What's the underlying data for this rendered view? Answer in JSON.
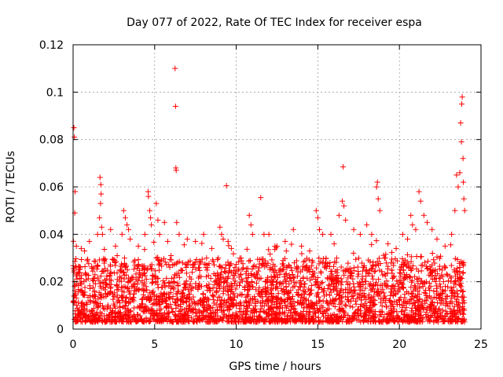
{
  "chart_data": {
    "type": "scatter",
    "title": "Day 077 of 2022, Rate Of TEC Index for receiver espa",
    "xlabel": "GPS time / hours",
    "ylabel": "ROTI / TECUs",
    "xlim": [
      0,
      25
    ],
    "ylim": [
      0,
      0.12
    ],
    "xticks": [
      0,
      5,
      10,
      15,
      20,
      25
    ],
    "xtick_labels": [
      "0",
      "5",
      "10",
      "15",
      "20",
      "25"
    ],
    "yticks": [
      0,
      0.02,
      0.04,
      0.06,
      0.08,
      0.1,
      0.12
    ],
    "ytick_labels": [
      "0",
      "0.02",
      "0.04",
      "0.06",
      "0.08",
      "0.1",
      "0.12"
    ],
    "grid": true,
    "marker": "plus",
    "color": "#ff0000",
    "series": [
      {
        "name": "ROTI",
        "points": [
          [
            0.05,
            0.085
          ],
          [
            0.08,
            0.081
          ],
          [
            0.1,
            0.049
          ],
          [
            0.12,
            0.058
          ],
          [
            0.2,
            0.035
          ],
          [
            0.5,
            0.034
          ],
          [
            0.7,
            0.033
          ],
          [
            1.0,
            0.037
          ],
          [
            1.5,
            0.04
          ],
          [
            1.65,
            0.064
          ],
          [
            1.7,
            0.061
          ],
          [
            1.72,
            0.057
          ],
          [
            1.68,
            0.053
          ],
          [
            1.62,
            0.047
          ],
          [
            1.75,
            0.043
          ],
          [
            1.8,
            0.04
          ],
          [
            2.3,
            0.042
          ],
          [
            2.6,
            0.035
          ],
          [
            3.0,
            0.04
          ],
          [
            3.1,
            0.05
          ],
          [
            3.2,
            0.047
          ],
          [
            3.3,
            0.044
          ],
          [
            3.4,
            0.042
          ],
          [
            3.5,
            0.038
          ],
          [
            4.0,
            0.035
          ],
          [
            4.4,
            0.04
          ],
          [
            4.6,
            0.058
          ],
          [
            4.62,
            0.056
          ],
          [
            4.7,
            0.05
          ],
          [
            4.75,
            0.047
          ],
          [
            4.8,
            0.044
          ],
          [
            5.1,
            0.053
          ],
          [
            5.2,
            0.046
          ],
          [
            5.3,
            0.04
          ],
          [
            5.6,
            0.045
          ],
          [
            5.8,
            0.037
          ],
          [
            6.0,
            0.031
          ],
          [
            6.25,
            0.11
          ],
          [
            6.28,
            0.094
          ],
          [
            6.3,
            0.068
          ],
          [
            6.32,
            0.067
          ],
          [
            6.35,
            0.045
          ],
          [
            6.5,
            0.04
          ],
          [
            7.0,
            0.038
          ],
          [
            7.5,
            0.037
          ],
          [
            8.0,
            0.04
          ],
          [
            8.5,
            0.034
          ],
          [
            9.0,
            0.043
          ],
          [
            9.1,
            0.04
          ],
          [
            9.2,
            0.038
          ],
          [
            9.4,
            0.0605
          ],
          [
            9.5,
            0.037
          ],
          [
            9.7,
            0.034
          ],
          [
            10.3,
            0.03
          ],
          [
            10.8,
            0.048
          ],
          [
            10.9,
            0.044
          ],
          [
            11.0,
            0.04
          ],
          [
            11.5,
            0.0555
          ],
          [
            11.7,
            0.04
          ],
          [
            12.0,
            0.04
          ],
          [
            12.5,
            0.035
          ],
          [
            13.0,
            0.037
          ],
          [
            13.5,
            0.042
          ],
          [
            14.0,
            0.035
          ],
          [
            14.5,
            0.033
          ],
          [
            14.9,
            0.05
          ],
          [
            15.0,
            0.047
          ],
          [
            15.1,
            0.042
          ],
          [
            15.3,
            0.04
          ],
          [
            15.8,
            0.04
          ],
          [
            16.0,
            0.036
          ],
          [
            16.3,
            0.048
          ],
          [
            16.5,
            0.054
          ],
          [
            16.55,
            0.0685
          ],
          [
            16.6,
            0.052
          ],
          [
            16.7,
            0.046
          ],
          [
            17.2,
            0.042
          ],
          [
            17.6,
            0.04
          ],
          [
            18.0,
            0.044
          ],
          [
            18.3,
            0.04
          ],
          [
            18.6,
            0.06
          ],
          [
            18.65,
            0.062
          ],
          [
            18.7,
            0.055
          ],
          [
            18.8,
            0.05
          ],
          [
            19.3,
            0.036
          ],
          [
            19.8,
            0.034
          ],
          [
            20.2,
            0.04
          ],
          [
            20.5,
            0.038
          ],
          [
            20.7,
            0.048
          ],
          [
            20.8,
            0.044
          ],
          [
            21.0,
            0.042
          ],
          [
            21.2,
            0.058
          ],
          [
            21.3,
            0.054
          ],
          [
            21.5,
            0.048
          ],
          [
            21.7,
            0.045
          ],
          [
            22.0,
            0.042
          ],
          [
            22.3,
            0.038
          ],
          [
            22.8,
            0.035
          ],
          [
            23.2,
            0.04
          ],
          [
            23.4,
            0.05
          ],
          [
            23.5,
            0.065
          ],
          [
            23.6,
            0.06
          ],
          [
            23.7,
            0.066
          ],
          [
            23.75,
            0.087
          ],
          [
            23.8,
            0.079
          ],
          [
            23.82,
            0.095
          ],
          [
            23.85,
            0.098
          ],
          [
            23.9,
            0.072
          ],
          [
            23.92,
            0.062
          ],
          [
            23.95,
            0.055
          ],
          [
            24.0,
            0.05
          ]
        ],
        "base_band": {
          "x_range": [
            0,
            24
          ],
          "typical_min": 0.003,
          "typical_max": 0.03,
          "approx_points": 3000
        }
      }
    ]
  }
}
